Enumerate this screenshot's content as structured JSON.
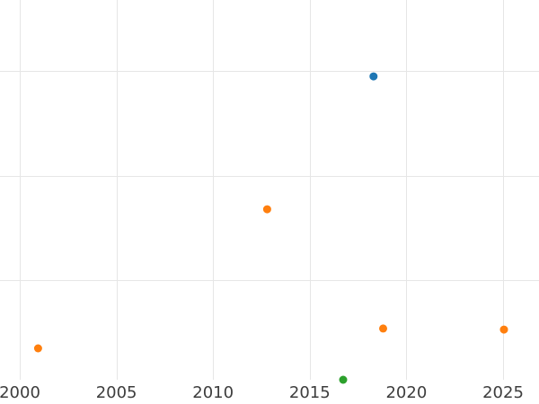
{
  "chart_data": {
    "type": "scatter",
    "title": "",
    "xlabel": "",
    "ylabel": "",
    "grid": true,
    "legend": "none",
    "x_ticks": [
      2000,
      2005,
      2010,
      2015,
      2020,
      2025
    ],
    "x_tick_labels": [
      "2000",
      "2005",
      "2010",
      "2015",
      "2020",
      "2025"
    ],
    "y_tick_labels": [],
    "y_gridline_values": [
      1,
      2,
      3
    ],
    "xlim": [
      1998.98,
      2026.86
    ],
    "ylim": [
      0.05,
      3.68
    ],
    "series": [
      {
        "name": "blue",
        "color": "#1f77b4",
        "points": [
          {
            "x": 2018.3,
            "y": 2.95
          }
        ]
      },
      {
        "name": "orange",
        "color": "#ff7f0e",
        "points": [
          {
            "x": 2000.95,
            "y": 0.35
          },
          {
            "x": 2012.8,
            "y": 1.68
          },
          {
            "x": 2018.8,
            "y": 0.54
          },
          {
            "x": 2025.05,
            "y": 0.53
          }
        ]
      },
      {
        "name": "green",
        "color": "#2ca02c",
        "points": [
          {
            "x": 2016.73,
            "y": 0.05
          }
        ]
      }
    ],
    "marker_radius_px": 4.5
  },
  "style_colors": {
    "background": "#ffffff",
    "gridline": "#e6e6e6",
    "tick_label": "#3d3d3d"
  }
}
